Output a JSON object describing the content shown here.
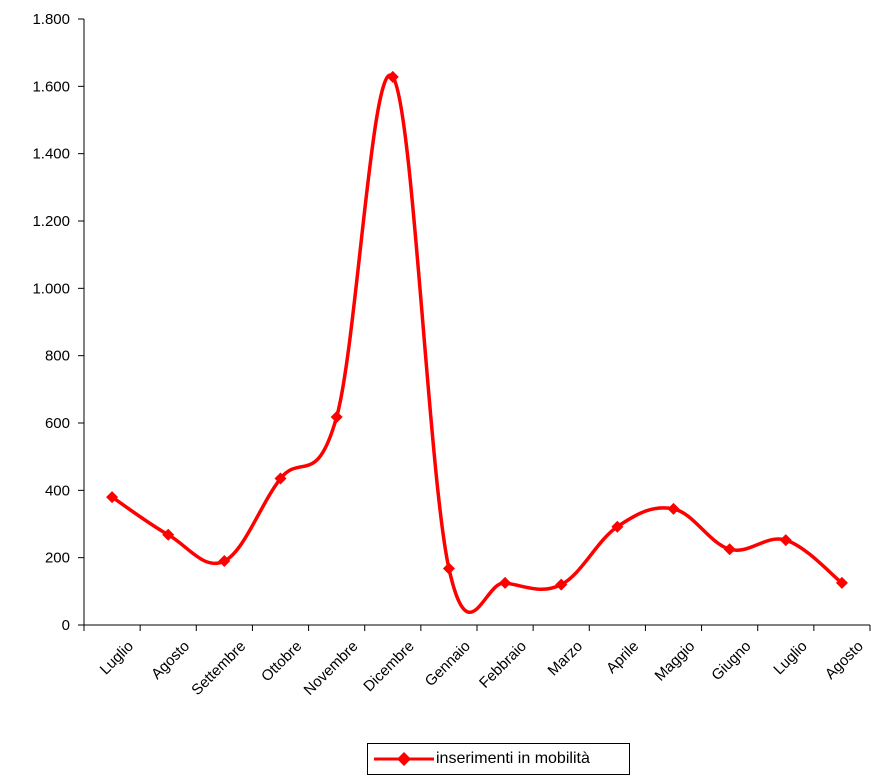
{
  "chart_data": {
    "type": "line",
    "categories": [
      "Luglio",
      "Agosto",
      "Settembre",
      "Ottobre",
      "Novembre",
      "Dicembre",
      "Gennaio",
      "Febbraio",
      "Marzo",
      "Aprile",
      "Maggio",
      "Giugno",
      "Luglio",
      "Agosto"
    ],
    "series": [
      {
        "name": "inserimenti in mobilità",
        "values": [
          380,
          268,
          190,
          435,
          618,
          1628,
          168,
          125,
          120,
          292,
          345,
          225,
          252,
          125
        ],
        "color": "#ff0000",
        "marker": "diamond"
      }
    ],
    "ylim": [
      0,
      1800
    ],
    "yticks": [
      0,
      200,
      400,
      600,
      800,
      1000,
      1200,
      1400,
      1600,
      1800
    ],
    "ytick_labels": [
      "0",
      "200",
      "400",
      "600",
      "800",
      "1.000",
      "1.200",
      "1.400",
      "1.600",
      "1.800"
    ],
    "grid": false,
    "legend_position": "bottom",
    "smooth": true
  }
}
